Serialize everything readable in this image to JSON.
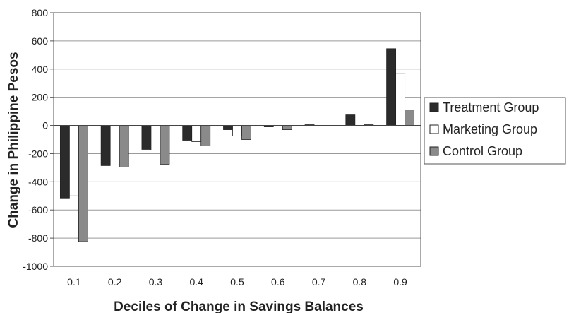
{
  "chart_data": {
    "type": "bar",
    "categories": [
      "0.1",
      "0.2",
      "0.3",
      "0.4",
      "0.5",
      "0.6",
      "0.7",
      "0.8",
      "0.9"
    ],
    "series": [
      {
        "name": "Treatment Group",
        "color": "#2b2b2b",
        "values": [
          -515,
          -285,
          -170,
          -105,
          -30,
          -10,
          5,
          75,
          545
        ]
      },
      {
        "name": "Marketing Group",
        "color": "#ffffff",
        "values": [
          -500,
          -280,
          -175,
          -115,
          -75,
          -5,
          0,
          10,
          370
        ]
      },
      {
        "name": "Control Group",
        "color": "#8a8a8a",
        "values": [
          -825,
          -295,
          -275,
          -145,
          -100,
          -30,
          0,
          5,
          110
        ]
      }
    ],
    "xlabel": "Deciles of Change in Savings Balances",
    "ylabel": "Change in Philippine Pesos",
    "ylim": [
      -1000,
      800
    ],
    "yticks": [
      800,
      600,
      400,
      200,
      0,
      -200,
      -400,
      -600,
      -800,
      -1000
    ],
    "grid": true,
    "legend_position": "right"
  }
}
